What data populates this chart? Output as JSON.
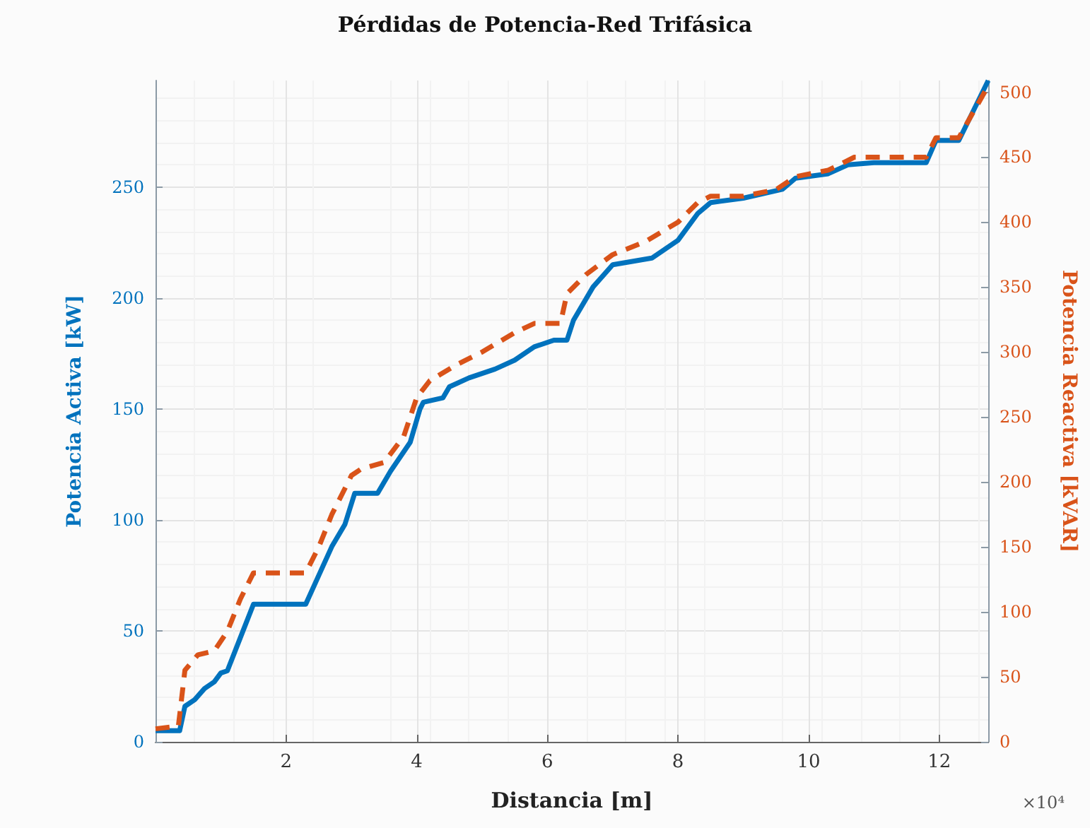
{
  "chart_data": {
    "type": "line",
    "title": "Pérdidas de Potencia-Red Trifásica",
    "xlabel": "Distancia [m]",
    "ylabel": "Potencia Activa [kW]",
    "y2label": "Potencia Reactiva [kVAR]",
    "annotations": [
      "×10⁴"
    ],
    "xlim": [
      0,
      12.75
    ],
    "xticks": [
      2,
      4,
      6,
      8,
      10,
      12
    ],
    "ylim": [
      0,
      298
    ],
    "yticks": [
      0,
      50,
      100,
      150,
      200,
      250
    ],
    "y2lim": [
      0,
      509
    ],
    "y2ticks": [
      0,
      50,
      100,
      150,
      200,
      250,
      300,
      350,
      400,
      450,
      500
    ],
    "grid": true,
    "marker": "none",
    "series": [
      {
        "color": "#0072bd",
        "line_style": "solid",
        "x": [
          0,
          0.37,
          0.45,
          0.6,
          0.75,
          0.9,
          1.0,
          1.1,
          1.3,
          1.5,
          2.3,
          2.5,
          2.7,
          2.9,
          3.05,
          3.4,
          3.6,
          3.9,
          4.05,
          4.1,
          4.4,
          4.5,
          4.8,
          5.2,
          5.5,
          5.8,
          6.1,
          6.3,
          6.4,
          6.7,
          7.0,
          7.6,
          8.0,
          8.3,
          8.5,
          9.0,
          9.6,
          9.8,
          10.3,
          10.6,
          11.0,
          11.8,
          11.95,
          12.3,
          12.75
        ],
        "values": [
          5,
          5,
          16,
          19,
          24,
          27,
          31,
          32,
          47,
          62,
          62,
          75,
          88,
          98,
          112,
          112,
          122,
          135,
          150,
          153,
          155,
          160,
          164,
          168,
          172,
          178,
          181,
          181,
          190,
          205,
          215,
          218,
          226,
          238,
          243,
          245,
          249,
          254,
          256,
          260,
          261,
          261,
          271,
          271,
          298
        ]
      },
      {
        "color": "#d95319",
        "line_style": "dashed",
        "axis": "y2",
        "x": [
          0,
          0.35,
          0.45,
          0.65,
          0.9,
          1.1,
          1.3,
          1.5,
          2.3,
          2.5,
          2.7,
          3.0,
          3.15,
          3.5,
          3.8,
          4.0,
          4.2,
          4.6,
          5.0,
          5.5,
          5.8,
          6.2,
          6.3,
          6.6,
          7.0,
          7.5,
          8.0,
          8.3,
          8.5,
          9.0,
          9.5,
          9.8,
          10.3,
          10.7,
          11.2,
          11.8,
          11.95,
          12.3,
          12.75
        ],
        "values": [
          10,
          12,
          55,
          67,
          70,
          85,
          110,
          130,
          130,
          150,
          175,
          205,
          210,
          215,
          235,
          265,
          278,
          290,
          300,
          315,
          322,
          322,
          345,
          360,
          375,
          385,
          400,
          415,
          420,
          420,
          425,
          435,
          440,
          450,
          450,
          450,
          465,
          465,
          505
        ]
      }
    ]
  }
}
